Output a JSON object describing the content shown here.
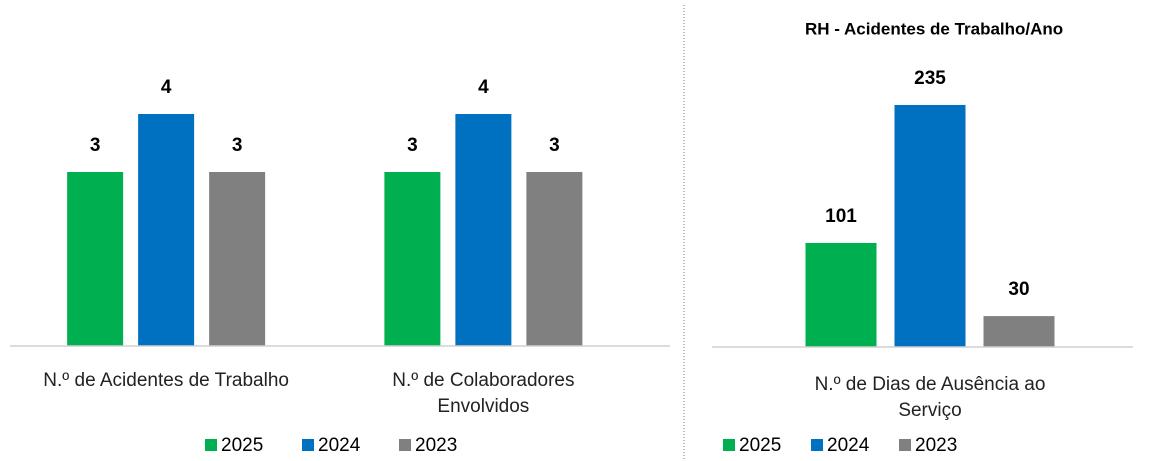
{
  "chart_data": [
    {
      "type": "bar",
      "categories": [
        "N.º de Acidentes de Trabalho",
        "N.º de Colaboradores Envolvidos"
      ],
      "series": [
        {
          "name": "2025",
          "color": "#00b050",
          "values": [
            3,
            3
          ]
        },
        {
          "name": "2024",
          "color": "#0070c0",
          "values": [
            4,
            4
          ]
        },
        {
          "name": "2023",
          "color": "#808080",
          "values": [
            3,
            3
          ]
        }
      ],
      "ylim": [
        0,
        5
      ],
      "legend": "bottom"
    },
    {
      "type": "bar",
      "title": "RH - Acidentes de Trabalho/Ano",
      "categories": [
        "N.º de Dias de Ausência ao Serviço"
      ],
      "series": [
        {
          "name": "2025",
          "color": "#00b050",
          "values": [
            101
          ]
        },
        {
          "name": "2024",
          "color": "#0070c0",
          "values": [
            235
          ]
        },
        {
          "name": "2023",
          "color": "#808080",
          "values": [
            30
          ]
        }
      ],
      "ylim": [
        0,
        300
      ],
      "legend": "bottom"
    }
  ]
}
